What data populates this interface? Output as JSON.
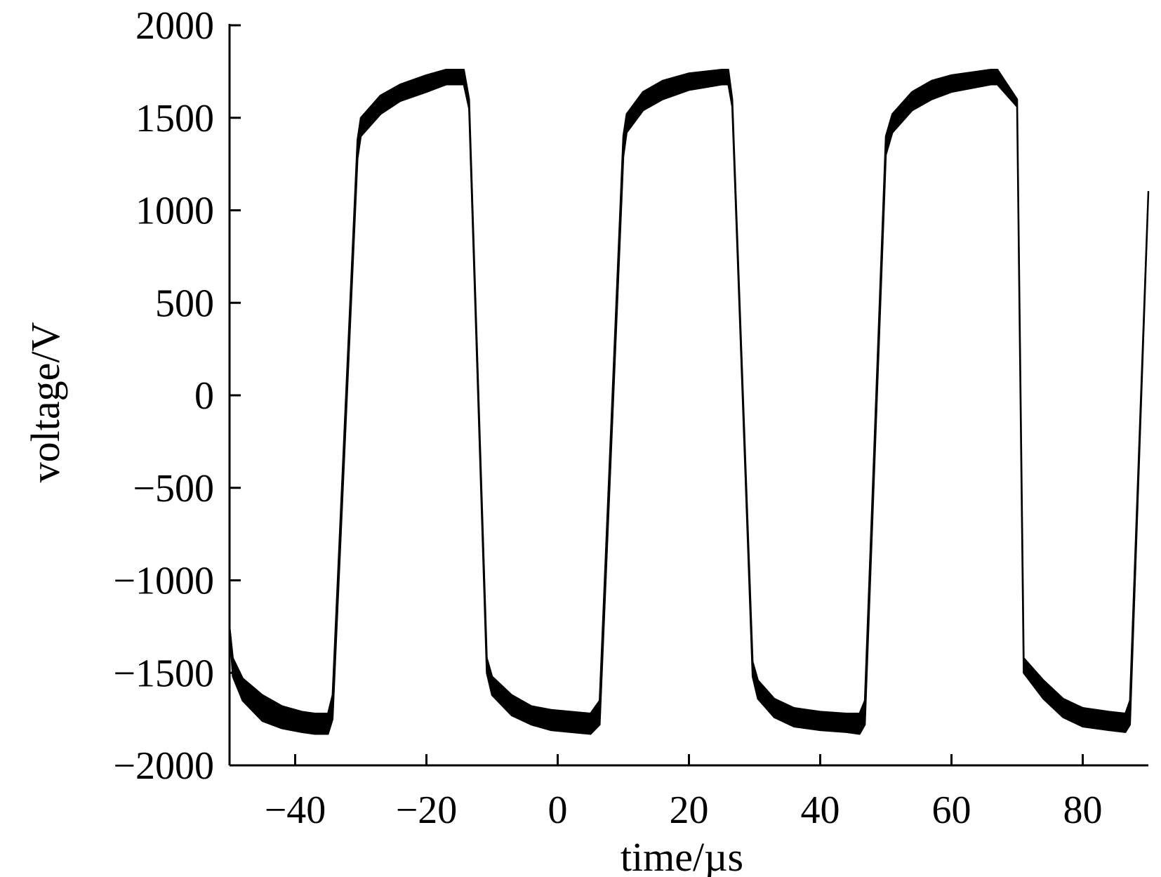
{
  "chart_data": {
    "type": "line",
    "title": "",
    "xlabel": "time/µs",
    "ylabel": "voltage/V",
    "xlim": [
      -50,
      90
    ],
    "ylim": [
      -2000,
      2000
    ],
    "x_ticks": [
      -40,
      -20,
      0,
      20,
      40,
      60,
      80
    ],
    "x_tick_labels": [
      "−40",
      "−20",
      "0",
      "20",
      "40",
      "60",
      "80"
    ],
    "y_ticks": [
      2000,
      1500,
      1000,
      500,
      0,
      -500,
      -1000,
      -1500,
      -2000
    ],
    "y_tick_labels": [
      "2000",
      "1500",
      "1000",
      "500",
      "0",
      "−500",
      "−1000",
      "−1500",
      "−2000"
    ],
    "grid": false,
    "line_color": "#000000",
    "series": [
      {
        "band": "upper",
        "x": [
          -50,
          -49.5,
          -48,
          -45,
          -42,
          -39,
          -37,
          -35,
          -34.3,
          -30.5,
          -30,
          -27,
          -24,
          -20,
          -17,
          -14.3,
          -13.5,
          -10.8,
          -10,
          -7,
          -4,
          -1,
          2,
          5,
          6.4,
          10,
          10.5,
          13,
          16,
          20,
          25,
          26,
          26.6,
          29.7,
          30.5,
          33,
          36,
          40,
          44,
          46,
          46.8,
          50,
          51,
          54,
          57,
          60,
          66,
          67,
          70,
          71,
          74,
          77,
          80,
          84,
          86.5,
          87.2,
          90
        ],
        "y": [
          -1250,
          -1420,
          -1530,
          -1620,
          -1680,
          -1710,
          -1720,
          -1720,
          -1620,
          1380,
          1500,
          1620,
          1680,
          1730,
          1760,
          1760,
          1600,
          -1420,
          -1520,
          -1620,
          -1680,
          -1700,
          -1710,
          -1720,
          -1650,
          1400,
          1520,
          1640,
          1700,
          1740,
          1760,
          1760,
          1600,
          -1440,
          -1540,
          -1640,
          -1690,
          -1710,
          -1720,
          -1720,
          -1650,
          1400,
          1520,
          1640,
          1700,
          1730,
          1760,
          1760,
          1600,
          -1420,
          -1540,
          -1640,
          -1690,
          -1710,
          -1720,
          -1650,
          1100
        ]
      },
      {
        "band": "lower",
        "x": [
          -50,
          -49.5,
          -48,
          -45,
          -42,
          -39,
          -37,
          -35,
          -34.3,
          -30.5,
          -30,
          -27,
          -24,
          -20,
          -17,
          -14.3,
          -13.5,
          -10.8,
          -10,
          -7,
          -4,
          -1,
          2,
          5,
          6.4,
          10,
          10.5,
          13,
          16,
          20,
          25,
          26,
          26.6,
          29.7,
          30.5,
          33,
          36,
          40,
          44,
          46,
          46.8,
          50,
          51,
          54,
          57,
          60,
          66,
          67,
          70,
          71,
          74,
          77,
          80,
          84,
          86.5,
          87.2,
          90
        ],
        "y": [
          -1250,
          -1520,
          -1650,
          -1760,
          -1800,
          -1820,
          -1830,
          -1830,
          -1750,
          1280,
          1400,
          1520,
          1590,
          1640,
          1680,
          1680,
          1550,
          -1500,
          -1620,
          -1730,
          -1780,
          -1810,
          -1820,
          -1830,
          -1780,
          1290,
          1420,
          1540,
          1600,
          1650,
          1680,
          1680,
          1560,
          -1520,
          -1640,
          -1740,
          -1790,
          -1810,
          -1820,
          -1830,
          -1780,
          1300,
          1420,
          1540,
          1600,
          1640,
          1680,
          1680,
          1560,
          -1500,
          -1640,
          -1740,
          -1790,
          -1810,
          -1820,
          -1780,
          1100
        ]
      }
    ]
  }
}
